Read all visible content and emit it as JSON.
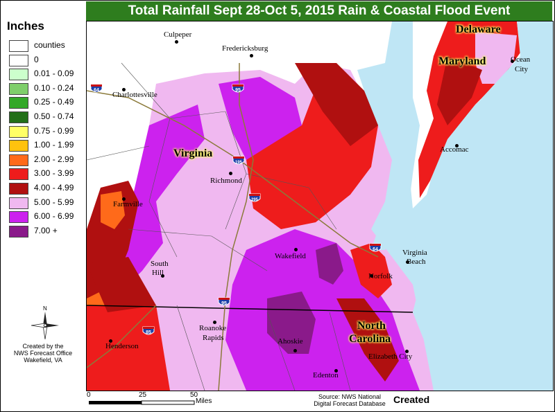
{
  "title": "Total Rainfall Sept 28-Oct 5, 2015 Rain & Coastal Flood Event",
  "legend": {
    "title": "Inches",
    "items": [
      {
        "label": "counties",
        "color": "#ffffff"
      },
      {
        "label": "0",
        "color": "#ffffff"
      },
      {
        "label": "0.01 - 0.09",
        "color": "#ccffcc"
      },
      {
        "label": "0.10 - 0.24",
        "color": "#7fce6b"
      },
      {
        "label": "0.25 - 0.49",
        "color": "#33a828"
      },
      {
        "label": "0.50 - 0.74",
        "color": "#226f18"
      },
      {
        "label": "0.75 - 0.99",
        "color": "#ffff66"
      },
      {
        "label": "1.00 - 1.99",
        "color": "#ffc20e"
      },
      {
        "label": "2.00 - 2.99",
        "color": "#ff6a1a"
      },
      {
        "label": "3.00 - 3.99",
        "color": "#ee1c1c"
      },
      {
        "label": "4.00 - 4.99",
        "color": "#b01010"
      },
      {
        "label": "5.00 - 5.99",
        "color": "#f0b8f0"
      },
      {
        "label": "6.00 - 6.99",
        "color": "#cc22ee"
      },
      {
        "label": "7.00 +",
        "color": "#8a1a8a"
      }
    ]
  },
  "north_label": "N",
  "credit": [
    "Created by the",
    "NWS Forecast Office",
    "Wakefield, VA"
  ],
  "scale": {
    "ticks": [
      "0",
      "25",
      "50"
    ],
    "unit": "Miles"
  },
  "source": [
    "Source: NWS National",
    "Digital Forecast Database"
  ],
  "created": "Created",
  "states": [
    "Delaware",
    "Maryland",
    "Virginia",
    "North",
    "Carolina"
  ],
  "cities": [
    "Culpeper",
    "Fredericksburg",
    "Charlottesville",
    "Richmond",
    "Farmville",
    "South",
    "Hill",
    "Wakefield",
    "Norfolk",
    "Virginia",
    "Beach",
    "Accomac",
    "Ocean",
    "City",
    "Roanoke",
    "Rapids",
    "Henderson",
    "Ahoskie",
    "Edenton",
    "Elizabeth City"
  ],
  "interstates": [
    "64",
    "95",
    "195",
    "295",
    "64",
    "95",
    "85"
  ]
}
